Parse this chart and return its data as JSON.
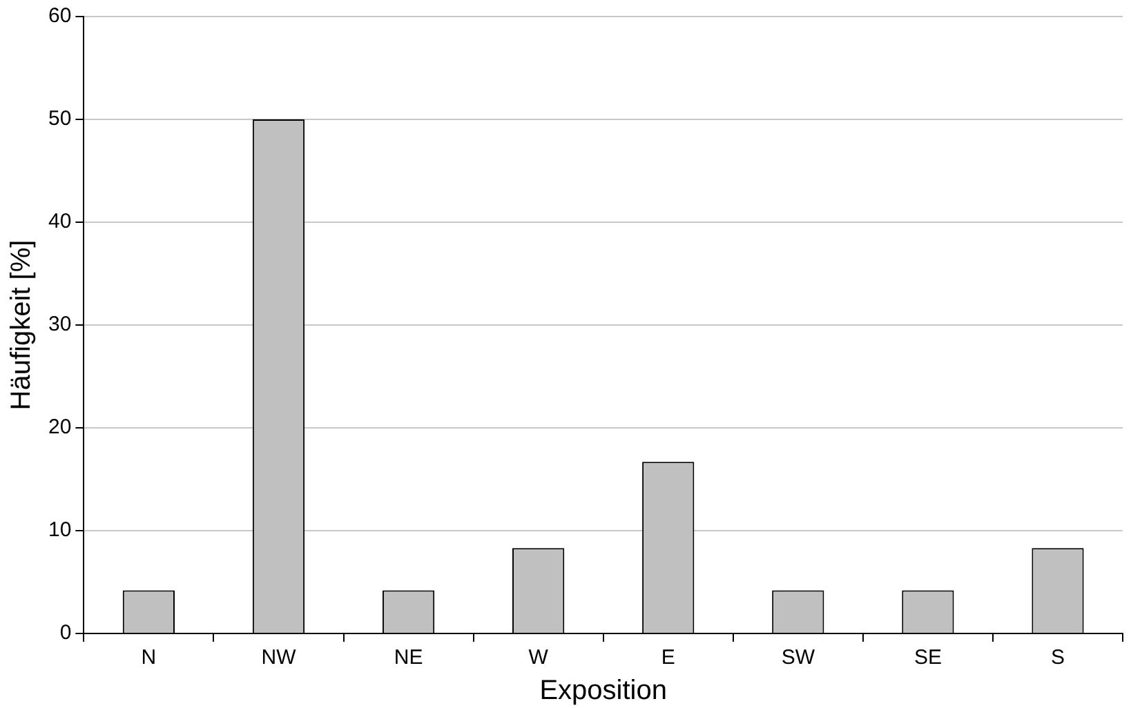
{
  "chart_data": {
    "type": "bar",
    "xlabel": "Exposition",
    "ylabel": "Häufigkeit [%]",
    "categories": [
      "N",
      "NW",
      "NE",
      "W",
      "E",
      "SW",
      "SE",
      "S"
    ],
    "values": [
      4.2,
      50,
      4.2,
      8.3,
      16.7,
      4.2,
      4.2,
      8.3
    ],
    "color": "#c0c0c0",
    "ylim": [
      0,
      60
    ],
    "yticks": [
      0,
      10,
      20,
      30,
      40,
      50,
      60
    ],
    "grid": "y",
    "legend": false
  }
}
